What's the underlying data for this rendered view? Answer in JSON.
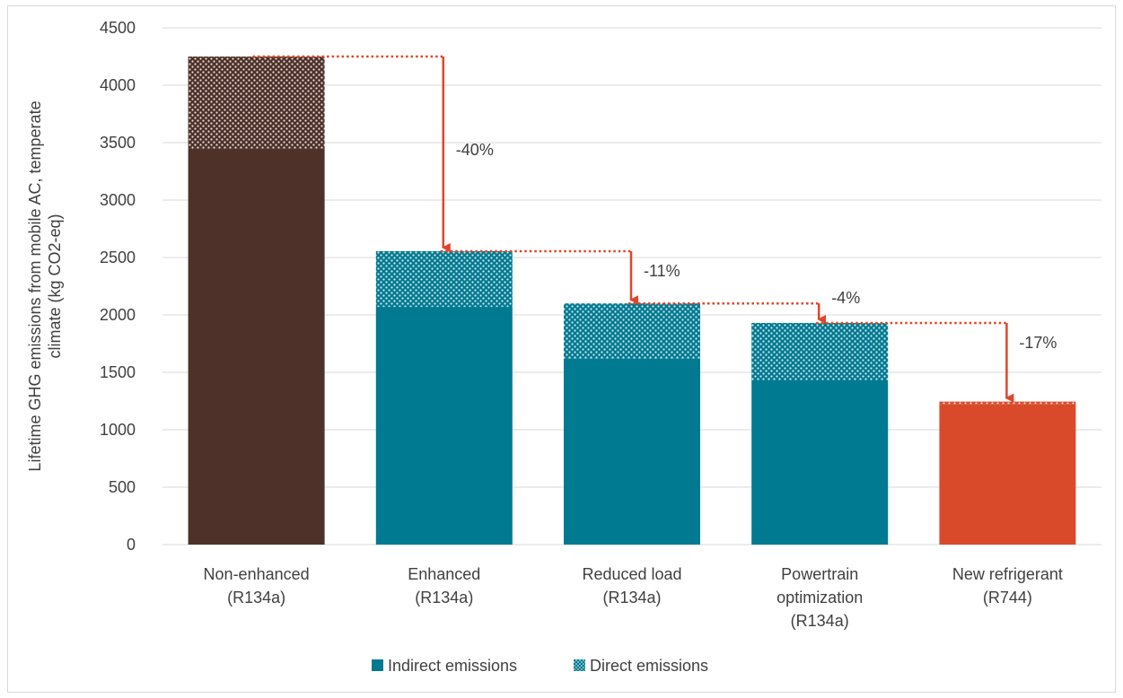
{
  "chart_data": {
    "type": "bar",
    "stacked": true,
    "title": "",
    "ylabel_lines": [
      "Lifetime GHG emissions from mobile AC, temperate",
      "climate (kg CO2-eq)"
    ],
    "xlabel": "",
    "ylim": [
      0,
      4500
    ],
    "yticks": [
      0,
      500,
      1000,
      1500,
      2000,
      2500,
      3000,
      3500,
      4000,
      4500
    ],
    "grid": true,
    "legend_position": "bottom",
    "categories": [
      [
        "Non-enhanced",
        "(R134a)"
      ],
      [
        "Enhanced",
        "(R134a)"
      ],
      [
        "Reduced load",
        "(R134a)"
      ],
      [
        "Powertrain",
        "optimization",
        "(R134a)"
      ],
      [
        "New refrigerant",
        "(R744)"
      ]
    ],
    "series": [
      {
        "name": "Indirect emissions",
        "pattern": "solid",
        "values": [
          3450,
          2070,
          1620,
          1430,
          1225
        ]
      },
      {
        "name": "Direct emissions",
        "pattern": "dotted",
        "values": [
          800,
          485,
          480,
          500,
          20
        ]
      }
    ],
    "bar_colors": [
      "#4e3128",
      "#007a91",
      "#007a91",
      "#007a91",
      "#d94a2b"
    ],
    "reductions": [
      {
        "label": "-40%",
        "from_total": 4250,
        "to_total": 2555
      },
      {
        "label": "-11%",
        "from_total": 2555,
        "to_total": 2100
      },
      {
        "label": "-4%",
        "from_total": 2100,
        "to_total": 1930
      },
      {
        "label": "-17%",
        "from_total": 1930,
        "to_total": 1245
      }
    ],
    "arrow_color": "#e0452b"
  }
}
